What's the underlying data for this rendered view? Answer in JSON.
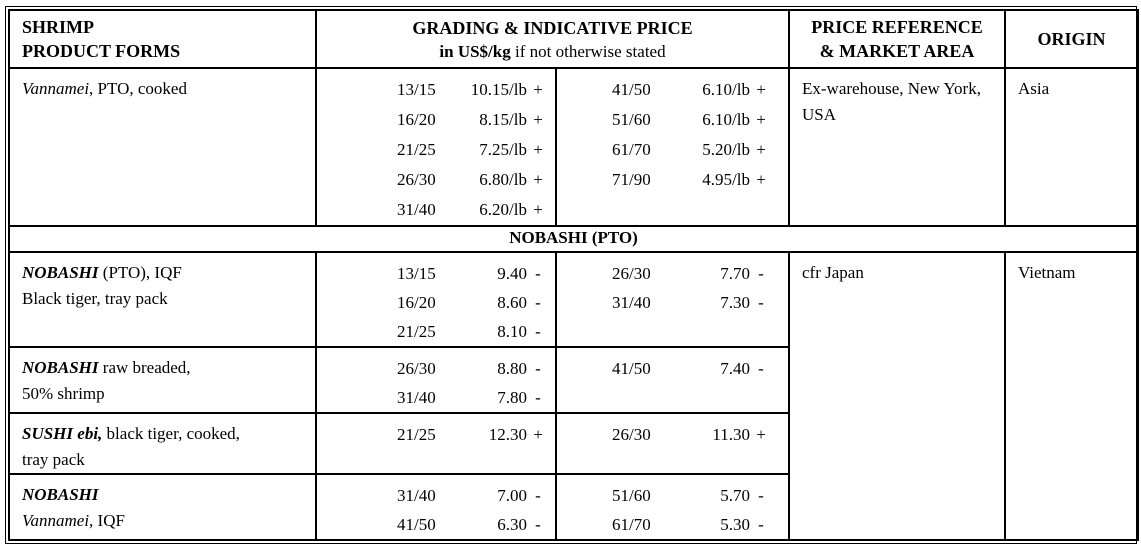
{
  "header": {
    "col1_line1": "SHRIMP",
    "col1_line2": "PRODUCT FORMS",
    "col2_line1": "GRADING & INDICATIVE PRICE",
    "col2_line2_bold": "in US$/kg",
    "col2_line2_rest": " if not otherwise stated",
    "col3_line1": "PRICE REFERENCE",
    "col3_line2": "& MARKET AREA",
    "col4": "ORIGIN"
  },
  "section_band": "NOBASHI (PTO)",
  "rows": [
    {
      "product": {
        "italic": "Vannamei",
        "rest": ", PTO, cooked"
      },
      "left": [
        {
          "g": "13/15",
          "p": "10.15/lb",
          "s": "+"
        },
        {
          "g": "16/20",
          "p": "8.15/lb",
          "s": "+"
        },
        {
          "g": "21/25",
          "p": "7.25/lb",
          "s": "+"
        },
        {
          "g": "26/30",
          "p": "6.80/lb",
          "s": "+"
        },
        {
          "g": "31/40",
          "p": "6.20/lb",
          "s": "+"
        }
      ],
      "right": [
        {
          "g": "41/50",
          "p": "6.10/lb",
          "s": "+"
        },
        {
          "g": "51/60",
          "p": "6.10/lb",
          "s": "+"
        },
        {
          "g": "61/70",
          "p": "5.20/lb",
          "s": "+"
        },
        {
          "g": "71/90",
          "p": "4.95/lb",
          "s": "+"
        }
      ],
      "ref": "Ex-warehouse, New York, USA",
      "origin": "Asia"
    },
    {
      "product": {
        "bolditalic": "NOBASHI",
        "rest": " (PTO), IQF",
        "line2": "Black tiger, tray pack"
      },
      "left": [
        {
          "g": "13/15",
          "p": "9.40",
          "s": "-"
        },
        {
          "g": "16/20",
          "p": "8.60",
          "s": "-"
        },
        {
          "g": "21/25",
          "p": "8.10",
          "s": "-"
        }
      ],
      "right": [
        {
          "g": "26/30",
          "p": "7.70",
          "s": "-"
        },
        {
          "g": "31/40",
          "p": "7.30",
          "s": "-"
        }
      ],
      "ref": "cfr Japan",
      "origin": "Vietnam"
    },
    {
      "product": {
        "bolditalic": "NOBASHI",
        "rest": " raw breaded,",
        "line2": "50% shrimp"
      },
      "left": [
        {
          "g": "26/30",
          "p": "8.80",
          "s": "-"
        },
        {
          "g": "31/40",
          "p": "7.80",
          "s": "-"
        }
      ],
      "right": [
        {
          "g": "41/50",
          "p": "7.40",
          "s": "-"
        }
      ]
    },
    {
      "product": {
        "bolditalic": "SUSHI ebi,",
        "rest": " black tiger, cooked,",
        "line2": "tray pack"
      },
      "left": [
        {
          "g": "21/25",
          "p": "12.30",
          "s": "+"
        }
      ],
      "right": [
        {
          "g": "26/30",
          "p": "11.30",
          "s": "+"
        }
      ]
    },
    {
      "product": {
        "bolditalic": "NOBASHI",
        "line2_italic": "Vannamei,",
        "line2_rest": " IQF"
      },
      "left": [
        {
          "g": "31/40",
          "p": "7.00",
          "s": "-"
        },
        {
          "g": "41/50",
          "p": "6.30",
          "s": "-"
        }
      ],
      "right": [
        {
          "g": "51/60",
          "p": "5.70",
          "s": "-"
        },
        {
          "g": "61/70",
          "p": "5.30",
          "s": "-"
        }
      ]
    }
  ]
}
